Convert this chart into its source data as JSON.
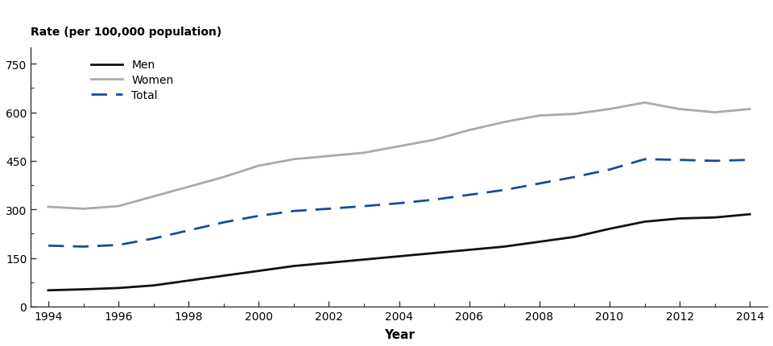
{
  "years": [
    1994,
    1995,
    1996,
    1997,
    1998,
    1999,
    2000,
    2001,
    2002,
    2003,
    2004,
    2005,
    2006,
    2007,
    2008,
    2009,
    2010,
    2011,
    2012,
    2013,
    2014
  ],
  "men": [
    50,
    53,
    57,
    65,
    80,
    95,
    110,
    125,
    135,
    145,
    155,
    165,
    175,
    185,
    200,
    215,
    240,
    262,
    272,
    275,
    285
  ],
  "women": [
    308,
    302,
    310,
    340,
    370,
    400,
    435,
    455,
    465,
    475,
    495,
    515,
    545,
    570,
    590,
    595,
    610,
    630,
    610,
    600,
    610
  ],
  "total": [
    188,
    185,
    190,
    210,
    235,
    260,
    280,
    295,
    302,
    310,
    319,
    330,
    345,
    360,
    380,
    400,
    423,
    455,
    453,
    450,
    453
  ],
  "men_color": "#111111",
  "women_color": "#aaaaaa",
  "total_color": "#1a4b9b",
  "ylabel": "Rate (per 100,000 population)",
  "xlabel": "Year",
  "ylim": [
    0,
    800
  ],
  "yticks": [
    0,
    150,
    300,
    450,
    600,
    750
  ],
  "xticks": [
    1994,
    1996,
    1998,
    2000,
    2002,
    2004,
    2006,
    2008,
    2010,
    2012,
    2014
  ],
  "legend_labels": [
    "Men",
    "Women",
    "Total"
  ],
  "background_color": "#ffffff",
  "linewidth": 2.0
}
